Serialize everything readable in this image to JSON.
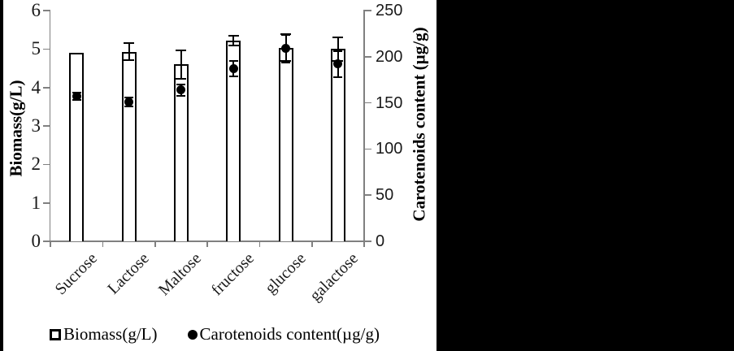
{
  "page": {
    "background_color": "#000000",
    "panel_color": "#ffffff",
    "axis_color": "#808080",
    "text_color": "#1a1a1a"
  },
  "chart_data": {
    "type": "bar",
    "title": "",
    "categories": [
      "Sucrose",
      "Lactose",
      "Maltose",
      "fructose",
      "glucose",
      "galactose"
    ],
    "series": [
      {
        "name": "Biomass(g/L)",
        "type": "bar",
        "axis": "left",
        "marker": "open-square",
        "color": "#000000",
        "fill": "#ffffff",
        "values": [
          4.9,
          4.93,
          4.6,
          5.22,
          5.03,
          5.0
        ],
        "errors": [
          0,
          0.22,
          0.37,
          0.13,
          0.35,
          0.3
        ]
      },
      {
        "name": "Carotenoids content(µg/g)",
        "type": "scatter",
        "axis": "right",
        "marker": "filled-circle",
        "color": "#000000",
        "values": [
          157,
          151,
          164,
          187,
          209,
          192
        ],
        "errors": [
          4,
          5,
          6,
          8,
          15,
          14
        ]
      }
    ],
    "left_axis": {
      "label": "Biomass(g/L)",
      "min": 0,
      "max": 6,
      "step": 1,
      "ticks": [
        "0",
        "1",
        "2",
        "3",
        "4",
        "5",
        "6"
      ]
    },
    "right_axis": {
      "label": "Carotenoids content (µg/g)",
      "min": 0,
      "max": 250,
      "step": 50,
      "ticks": [
        "0",
        "50",
        "100",
        "150",
        "200",
        "250"
      ]
    },
    "legend": [
      {
        "label": "Biomass(g/L)",
        "marker": "open-square"
      },
      {
        "label": "Carotenoids content(µg/g)",
        "marker": "filled-circle"
      }
    ],
    "grid": false,
    "legend_position": "bottom-left"
  }
}
